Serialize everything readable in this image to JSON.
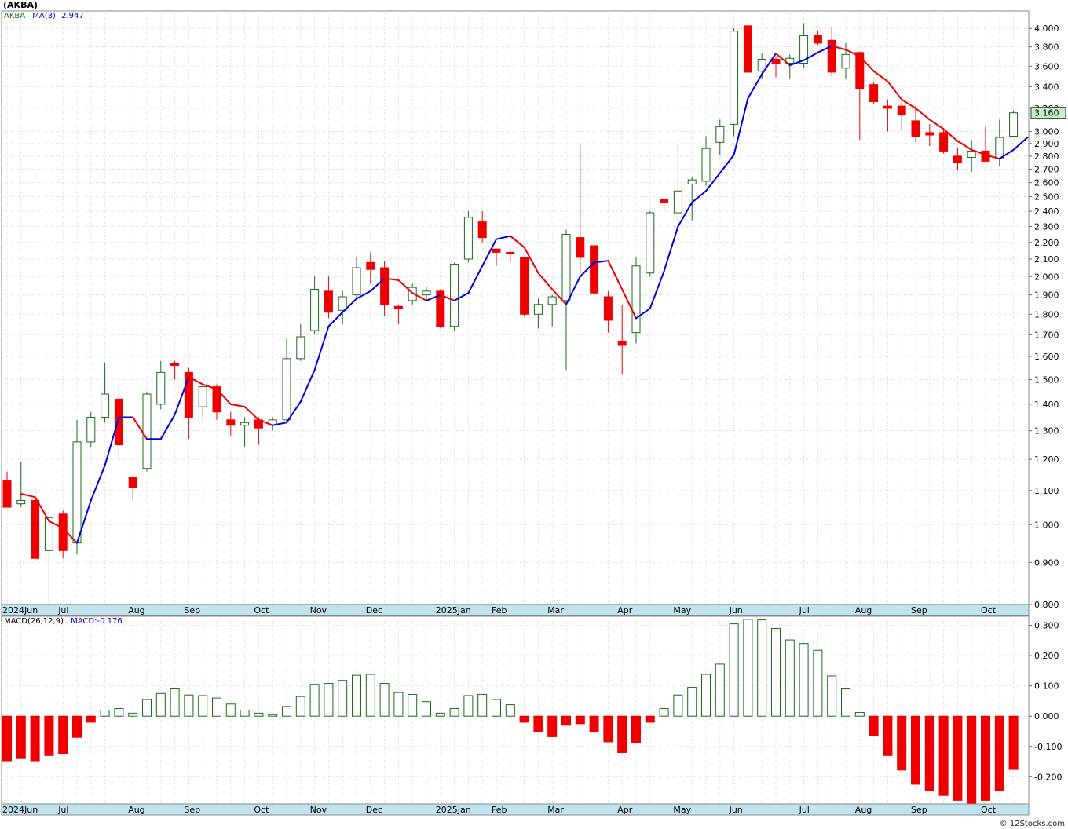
{
  "title": "(AKBA)",
  "watermark": "© 12Stocks.com",
  "legend": {
    "symbol": "AKBA",
    "ma_label": "MA(3)",
    "ma_value": "2.947",
    "macd_label": "MACD(26,12,9)",
    "macd_value_label": "MACD:-0.176"
  },
  "colors": {
    "up": "#1a6b1a",
    "down": "#ee0000",
    "ma_up": "#0000dd",
    "ma_down": "#ee0000",
    "last_price_box": "#c8f0c8",
    "axis_band": "#bfe3ef",
    "grid": "#d8d8d8"
  },
  "last_price_label": "3.160",
  "x_labels": [
    {
      "i": 0,
      "label": "2024Jun"
    },
    {
      "i": 4,
      "label": "Jul"
    },
    {
      "i": 9,
      "label": "Aug"
    },
    {
      "i": 13,
      "label": "Sep"
    },
    {
      "i": 18,
      "label": "Oct"
    },
    {
      "i": 22,
      "label": "Nov"
    },
    {
      "i": 26,
      "label": "Dec"
    },
    {
      "i": 31,
      "label": "2025Jan"
    },
    {
      "i": 35,
      "label": "Feb"
    },
    {
      "i": 39,
      "label": "Mar"
    },
    {
      "i": 44,
      "label": "Apr"
    },
    {
      "i": 48,
      "label": "May"
    },
    {
      "i": 52,
      "label": "Jun"
    },
    {
      "i": 57,
      "label": "Jul"
    },
    {
      "i": 61,
      "label": "Aug"
    },
    {
      "i": 65,
      "label": "Sep"
    },
    {
      "i": 70,
      "label": "Oct"
    }
  ],
  "chart_data": [
    {
      "type": "candlestick",
      "name": "AKBA",
      "scale": "log",
      "ylim": [
        0.8,
        4.2
      ],
      "yticks": [
        "4.000",
        "3.800",
        "3.600",
        "3.400",
        "3.200",
        "3.000",
        "2.900",
        "2.800",
        "2.700",
        "2.600",
        "2.500",
        "2.400",
        "2.300",
        "2.200",
        "2.100",
        "2.000",
        "1.900",
        "1.800",
        "1.700",
        "1.600",
        "1.500",
        "1.400",
        "1.300",
        "1.200",
        "1.100",
        "1.000",
        "0.900",
        "0.800"
      ],
      "candles": [
        {
          "o": 1.13,
          "h": 1.16,
          "l": 1.05,
          "c": 1.05
        },
        {
          "o": 1.06,
          "h": 1.19,
          "l": 1.05,
          "c": 1.07
        },
        {
          "o": 1.07,
          "h": 1.11,
          "l": 0.9,
          "c": 0.91
        },
        {
          "o": 0.93,
          "h": 1.04,
          "l": 0.8,
          "c": 1.02
        },
        {
          "o": 1.03,
          "h": 1.04,
          "l": 0.91,
          "c": 0.93
        },
        {
          "o": 0.95,
          "h": 1.34,
          "l": 0.92,
          "c": 1.26
        },
        {
          "o": 1.26,
          "h": 1.37,
          "l": 1.24,
          "c": 1.35
        },
        {
          "o": 1.35,
          "h": 1.57,
          "l": 1.33,
          "c": 1.44
        },
        {
          "o": 1.42,
          "h": 1.48,
          "l": 1.2,
          "c": 1.25
        },
        {
          "o": 1.14,
          "h": 1.14,
          "l": 1.07,
          "c": 1.11
        },
        {
          "o": 1.17,
          "h": 1.45,
          "l": 1.16,
          "c": 1.44
        },
        {
          "o": 1.4,
          "h": 1.58,
          "l": 1.38,
          "c": 1.53
        },
        {
          "o": 1.57,
          "h": 1.58,
          "l": 1.5,
          "c": 1.56
        },
        {
          "o": 1.53,
          "h": 1.55,
          "l": 1.27,
          "c": 1.35
        },
        {
          "o": 1.39,
          "h": 1.48,
          "l": 1.35,
          "c": 1.47
        },
        {
          "o": 1.47,
          "h": 1.48,
          "l": 1.34,
          "c": 1.37
        },
        {
          "o": 1.34,
          "h": 1.37,
          "l": 1.28,
          "c": 1.32
        },
        {
          "o": 1.32,
          "h": 1.35,
          "l": 1.24,
          "c": 1.33
        },
        {
          "o": 1.34,
          "h": 1.35,
          "l": 1.25,
          "c": 1.31
        },
        {
          "o": 1.32,
          "h": 1.35,
          "l": 1.3,
          "c": 1.34
        },
        {
          "o": 1.34,
          "h": 1.68,
          "l": 1.33,
          "c": 1.59
        },
        {
          "o": 1.59,
          "h": 1.75,
          "l": 1.58,
          "c": 1.69
        },
        {
          "o": 1.72,
          "h": 2.0,
          "l": 1.7,
          "c": 1.93
        },
        {
          "o": 1.92,
          "h": 2.0,
          "l": 1.78,
          "c": 1.81
        },
        {
          "o": 1.82,
          "h": 1.92,
          "l": 1.75,
          "c": 1.89
        },
        {
          "o": 1.9,
          "h": 2.11,
          "l": 1.88,
          "c": 2.05
        },
        {
          "o": 2.08,
          "h": 2.14,
          "l": 1.96,
          "c": 2.04
        },
        {
          "o": 2.05,
          "h": 2.09,
          "l": 1.79,
          "c": 1.85
        },
        {
          "o": 1.84,
          "h": 1.85,
          "l": 1.75,
          "c": 1.83
        },
        {
          "o": 1.87,
          "h": 1.96,
          "l": 1.85,
          "c": 1.94
        },
        {
          "o": 1.9,
          "h": 1.94,
          "l": 1.87,
          "c": 1.92
        },
        {
          "o": 1.92,
          "h": 1.93,
          "l": 1.73,
          "c": 1.74
        },
        {
          "o": 1.74,
          "h": 2.08,
          "l": 1.72,
          "c": 2.07
        },
        {
          "o": 2.1,
          "h": 2.4,
          "l": 2.08,
          "c": 2.36
        },
        {
          "o": 2.33,
          "h": 2.4,
          "l": 2.2,
          "c": 2.23
        },
        {
          "o": 2.16,
          "h": 2.16,
          "l": 2.06,
          "c": 2.14
        },
        {
          "o": 2.14,
          "h": 2.16,
          "l": 2.08,
          "c": 2.13
        },
        {
          "o": 2.11,
          "h": 2.11,
          "l": 1.79,
          "c": 1.8
        },
        {
          "o": 1.8,
          "h": 1.88,
          "l": 1.73,
          "c": 1.85
        },
        {
          "o": 1.85,
          "h": 1.9,
          "l": 1.74,
          "c": 1.89
        },
        {
          "o": 1.87,
          "h": 2.28,
          "l": 1.54,
          "c": 2.25
        },
        {
          "o": 2.23,
          "h": 2.89,
          "l": 2.02,
          "c": 2.11
        },
        {
          "o": 2.18,
          "h": 2.19,
          "l": 1.88,
          "c": 1.91
        },
        {
          "o": 1.89,
          "h": 1.92,
          "l": 1.71,
          "c": 1.77
        },
        {
          "o": 1.67,
          "h": 1.85,
          "l": 1.52,
          "c": 1.65
        },
        {
          "o": 1.71,
          "h": 2.11,
          "l": 1.66,
          "c": 2.06
        },
        {
          "o": 2.02,
          "h": 2.4,
          "l": 2.0,
          "c": 2.39
        },
        {
          "o": 2.48,
          "h": 2.48,
          "l": 2.39,
          "c": 2.46
        },
        {
          "o": 2.39,
          "h": 2.9,
          "l": 2.34,
          "c": 2.54
        },
        {
          "o": 2.59,
          "h": 2.64,
          "l": 2.34,
          "c": 2.62
        },
        {
          "o": 2.61,
          "h": 2.96,
          "l": 2.58,
          "c": 2.86
        },
        {
          "o": 2.91,
          "h": 3.1,
          "l": 2.81,
          "c": 3.04
        },
        {
          "o": 3.06,
          "h": 4.0,
          "l": 2.96,
          "c": 3.97
        },
        {
          "o": 4.03,
          "h": 4.04,
          "l": 3.52,
          "c": 3.54
        },
        {
          "o": 3.55,
          "h": 3.73,
          "l": 3.48,
          "c": 3.67
        },
        {
          "o": 3.67,
          "h": 3.7,
          "l": 3.49,
          "c": 3.63
        },
        {
          "o": 3.63,
          "h": 3.72,
          "l": 3.48,
          "c": 3.68
        },
        {
          "o": 3.63,
          "h": 4.06,
          "l": 3.58,
          "c": 3.92
        },
        {
          "o": 3.92,
          "h": 3.98,
          "l": 3.82,
          "c": 3.84
        },
        {
          "o": 3.87,
          "h": 4.02,
          "l": 3.5,
          "c": 3.54
        },
        {
          "o": 3.58,
          "h": 3.84,
          "l": 3.47,
          "c": 3.72
        },
        {
          "o": 3.74,
          "h": 3.75,
          "l": 2.93,
          "c": 3.38
        },
        {
          "o": 3.42,
          "h": 3.44,
          "l": 3.24,
          "c": 3.26
        },
        {
          "o": 3.22,
          "h": 3.28,
          "l": 3.0,
          "c": 3.2
        },
        {
          "o": 3.22,
          "h": 3.26,
          "l": 3.01,
          "c": 3.14
        },
        {
          "o": 3.09,
          "h": 3.22,
          "l": 2.91,
          "c": 2.96
        },
        {
          "o": 2.99,
          "h": 3.06,
          "l": 2.88,
          "c": 2.97
        },
        {
          "o": 2.99,
          "h": 3.03,
          "l": 2.82,
          "c": 2.84
        },
        {
          "o": 2.8,
          "h": 2.87,
          "l": 2.69,
          "c": 2.75
        },
        {
          "o": 2.79,
          "h": 2.93,
          "l": 2.68,
          "c": 2.84
        },
        {
          "o": 2.84,
          "h": 3.04,
          "l": 2.76,
          "c": 2.76
        },
        {
          "o": 2.78,
          "h": 3.1,
          "l": 2.72,
          "c": 2.95
        },
        {
          "o": 2.96,
          "h": 3.18,
          "l": 2.95,
          "c": 3.16
        }
      ],
      "ma3": [
        1.09,
        1.08,
        1.01,
        0.99,
        0.95,
        1.07,
        1.18,
        1.35,
        1.35,
        1.27,
        1.27,
        1.36,
        1.51,
        1.48,
        1.46,
        1.4,
        1.39,
        1.34,
        1.32,
        1.33,
        1.41,
        1.54,
        1.74,
        1.81,
        1.88,
        1.92,
        1.99,
        1.98,
        1.91,
        1.87,
        1.9,
        1.87,
        1.91,
        2.06,
        2.22,
        2.24,
        2.17,
        2.02,
        1.93,
        1.85,
        2.0,
        2.08,
        2.09,
        1.93,
        1.78,
        1.83,
        2.03,
        2.3,
        2.46,
        2.54,
        2.67,
        2.81,
        3.29,
        3.52,
        3.73,
        3.61,
        3.66,
        3.74,
        3.81,
        3.77,
        3.7,
        3.55,
        3.45,
        3.28,
        3.2,
        3.1,
        3.02,
        2.92,
        2.85,
        2.81,
        2.78,
        2.85,
        2.95
      ]
    },
    {
      "type": "bar",
      "name": "MACD(26,12,9)",
      "ylim": [
        -0.29,
        0.33
      ],
      "yticks": [
        "0.300",
        "0.200",
        "0.100",
        "0.000",
        "-0.100",
        "-0.200"
      ],
      "values": [
        -0.15,
        -0.14,
        -0.15,
        -0.13,
        -0.125,
        -0.07,
        -0.02,
        0.02,
        0.025,
        0.01,
        0.055,
        0.075,
        0.09,
        0.07,
        0.068,
        0.06,
        0.04,
        0.02,
        0.01,
        0.005,
        0.032,
        0.065,
        0.105,
        0.108,
        0.118,
        0.135,
        0.138,
        0.108,
        0.078,
        0.072,
        0.048,
        0.01,
        0.025,
        0.068,
        0.072,
        0.055,
        0.038,
        -0.02,
        -0.052,
        -0.068,
        -0.03,
        -0.025,
        -0.05,
        -0.085,
        -0.12,
        -0.088,
        -0.02,
        0.025,
        0.07,
        0.095,
        0.138,
        0.172,
        0.305,
        0.32,
        0.318,
        0.29,
        0.252,
        0.24,
        0.218,
        0.133,
        0.09,
        0.012,
        -0.065,
        -0.13,
        -0.178,
        -0.225,
        -0.245,
        -0.262,
        -0.278,
        -0.3,
        -0.278,
        -0.245,
        -0.176
      ]
    }
  ]
}
